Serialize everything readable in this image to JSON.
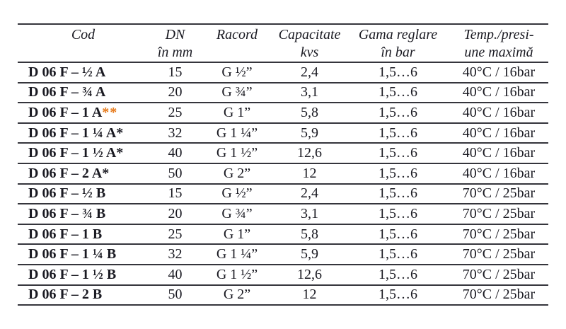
{
  "colors": {
    "accent_asterisk": "#e67817",
    "rule_line": "#35353c",
    "text": "#1a1a22"
  },
  "table": {
    "headers": [
      {
        "line1": "Cod",
        "line2": ""
      },
      {
        "line1": "DN",
        "line2": "în mm"
      },
      {
        "line1": "Racord",
        "line2": ""
      },
      {
        "line1": "Capacitate",
        "line2": "kvs"
      },
      {
        "line1": "Gama reglare",
        "line2": "în bar"
      },
      {
        "line1": "Temp./presi-",
        "line2": "une maximă"
      }
    ],
    "rows": [
      {
        "cod": "D 06 F – ½ A",
        "cod_mark": "",
        "dn": "15",
        "racord": "G ½”",
        "kvs": "2,4",
        "gama": "1,5…6",
        "temp": "40°C / 16bar"
      },
      {
        "cod": "D 06 F – ¾ A",
        "cod_mark": "",
        "dn": "20",
        "racord": "G ¾”",
        "kvs": "3,1",
        "gama": "1,5…6",
        "temp": "40°C / 16bar"
      },
      {
        "cod": "D 06 F – 1 A",
        "cod_mark": "**",
        "dn": "25",
        "racord": "G 1”",
        "kvs": "5,8",
        "gama": "1,5…6",
        "temp": "40°C / 16bar"
      },
      {
        "cod": "D 06 F – 1 ¼ A*",
        "cod_mark": "",
        "dn": "32",
        "racord": "G 1 ¼”",
        "kvs": "5,9",
        "gama": "1,5…6",
        "temp": "40°C / 16bar"
      },
      {
        "cod": "D 06 F – 1 ½ A*",
        "cod_mark": "",
        "dn": "40",
        "racord": "G 1 ½”",
        "kvs": "12,6",
        "gama": "1,5…6",
        "temp": "40°C / 16bar"
      },
      {
        "cod": "D 06 F – 2 A*",
        "cod_mark": "",
        "dn": "50",
        "racord": "G 2”",
        "kvs": "12",
        "gama": "1,5…6",
        "temp": "40°C / 16bar"
      },
      {
        "cod": "D 06 F – ½ B",
        "cod_mark": "",
        "dn": "15",
        "racord": "G ½”",
        "kvs": "2,4",
        "gama": "1,5…6",
        "temp": "70°C / 25bar"
      },
      {
        "cod": "D 06 F – ¾ B",
        "cod_mark": "",
        "dn": "20",
        "racord": "G ¾”",
        "kvs": "3,1",
        "gama": "1,5…6",
        "temp": "70°C / 25bar"
      },
      {
        "cod": "D 06 F – 1 B",
        "cod_mark": "",
        "dn": "25",
        "racord": "G 1”",
        "kvs": "5,8",
        "gama": "1,5…6",
        "temp": "70°C / 25bar"
      },
      {
        "cod": "D 06 F – 1 ¼ B",
        "cod_mark": "",
        "dn": "32",
        "racord": "G 1 ¼”",
        "kvs": "5,9",
        "gama": "1,5…6",
        "temp": "70°C / 25bar"
      },
      {
        "cod": "D 06 F – 1 ½ B",
        "cod_mark": "",
        "dn": "40",
        "racord": "G 1 ½”",
        "kvs": "12,6",
        "gama": "1,5…6",
        "temp": "70°C / 25bar"
      },
      {
        "cod": "D 06 F – 2 B",
        "cod_mark": "",
        "dn": "50",
        "racord": "G 2”",
        "kvs": "12",
        "gama": "1,5…6",
        "temp": "70°C / 25bar"
      }
    ]
  }
}
